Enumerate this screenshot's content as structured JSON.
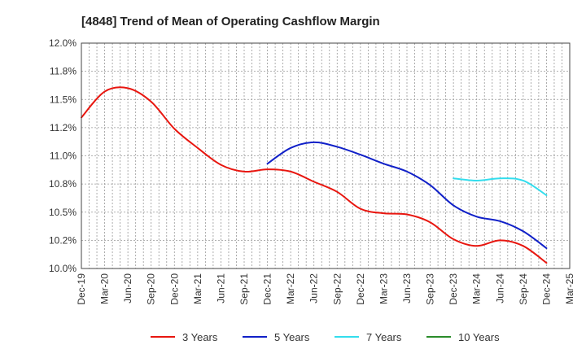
{
  "chart_data": {
    "type": "line",
    "title": "[4848]  Trend of Mean of Operating Cashflow Margin",
    "x": [
      "Dec-19",
      "Mar-20",
      "Jun-20",
      "Sep-20",
      "Dec-20",
      "Mar-21",
      "Jun-21",
      "Sep-21",
      "Dec-21",
      "Mar-22",
      "Jun-22",
      "Sep-22",
      "Dec-22",
      "Mar-23",
      "Jun-23",
      "Sep-23",
      "Dec-23",
      "Mar-24",
      "Jun-24",
      "Sep-24",
      "Dec-24"
    ],
    "x_tick_labels": [
      "Dec-19",
      "Mar-20",
      "Jun-20",
      "Sep-20",
      "Dec-20",
      "Mar-21",
      "Jun-21",
      "Sep-21",
      "Dec-21",
      "Mar-22",
      "Jun-22",
      "Sep-22",
      "Dec-22",
      "Mar-23",
      "Jun-23",
      "Sep-23",
      "Dec-23",
      "Mar-24",
      "Jun-24",
      "Sep-24",
      "Dec-24",
      "Mar-25"
    ],
    "y_tick_labels": [
      "10.0%",
      "10.2%",
      "10.5%",
      "10.8%",
      "11.0%",
      "11.2%",
      "11.5%",
      "11.8%",
      "12.0%"
    ],
    "ylim": [
      10.0,
      12.0
    ],
    "grid": true,
    "legend_position": "bottom",
    "series": [
      {
        "name": "3 Years",
        "color": "#e8160f",
        "values": [
          11.34,
          11.57,
          11.6,
          11.48,
          11.24,
          11.07,
          10.92,
          10.86,
          10.88,
          10.86,
          10.77,
          10.68,
          10.53,
          10.49,
          10.48,
          10.41,
          10.26,
          10.2,
          10.25,
          10.2,
          10.05
        ]
      },
      {
        "name": "5 Years",
        "color": "#1020c8",
        "values": [
          null,
          null,
          null,
          null,
          null,
          null,
          null,
          null,
          10.93,
          11.07,
          11.12,
          11.08,
          11.01,
          10.93,
          10.86,
          10.74,
          10.56,
          10.46,
          10.42,
          10.33,
          10.18
        ]
      },
      {
        "name": "7 Years",
        "color": "#33dded",
        "values": [
          null,
          null,
          null,
          null,
          null,
          null,
          null,
          null,
          null,
          null,
          null,
          null,
          null,
          null,
          null,
          null,
          10.8,
          10.78,
          10.8,
          10.78,
          10.65
        ]
      },
      {
        "name": "10 Years",
        "color": "#2a8c2a",
        "values": [
          null,
          null,
          null,
          null,
          null,
          null,
          null,
          null,
          null,
          null,
          null,
          null,
          null,
          null,
          null,
          null,
          null,
          null,
          null,
          null,
          null
        ]
      }
    ]
  }
}
